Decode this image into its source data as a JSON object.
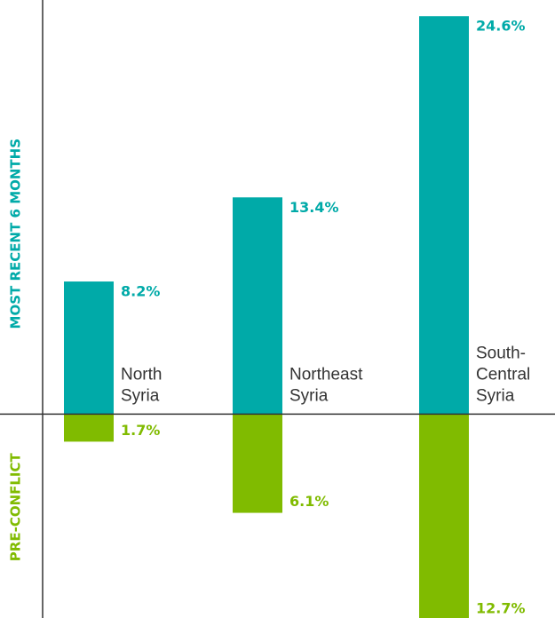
{
  "chart_data": {
    "type": "bar",
    "categories": [
      [
        "North",
        "Syria"
      ],
      [
        "Northeast",
        "Syria"
      ],
      [
        "South-",
        "Central",
        "Syria"
      ]
    ],
    "series": [
      {
        "name": "MOST RECENT 6 MONTHS",
        "color": "#00aaa8",
        "direction": "up",
        "values": [
          8.2,
          13.4,
          24.6
        ],
        "value_labels": [
          "8.2%",
          "13.4%",
          "24.6%"
        ]
      },
      {
        "name": "PRE-CONFLICT",
        "color": "#80bb00",
        "direction": "down",
        "values": [
          1.7,
          6.1,
          12.7
        ],
        "value_labels": [
          "1.7%",
          "6.1%",
          "12.7%"
        ]
      }
    ],
    "ylim": [
      -12.6,
      25.6
    ]
  }
}
